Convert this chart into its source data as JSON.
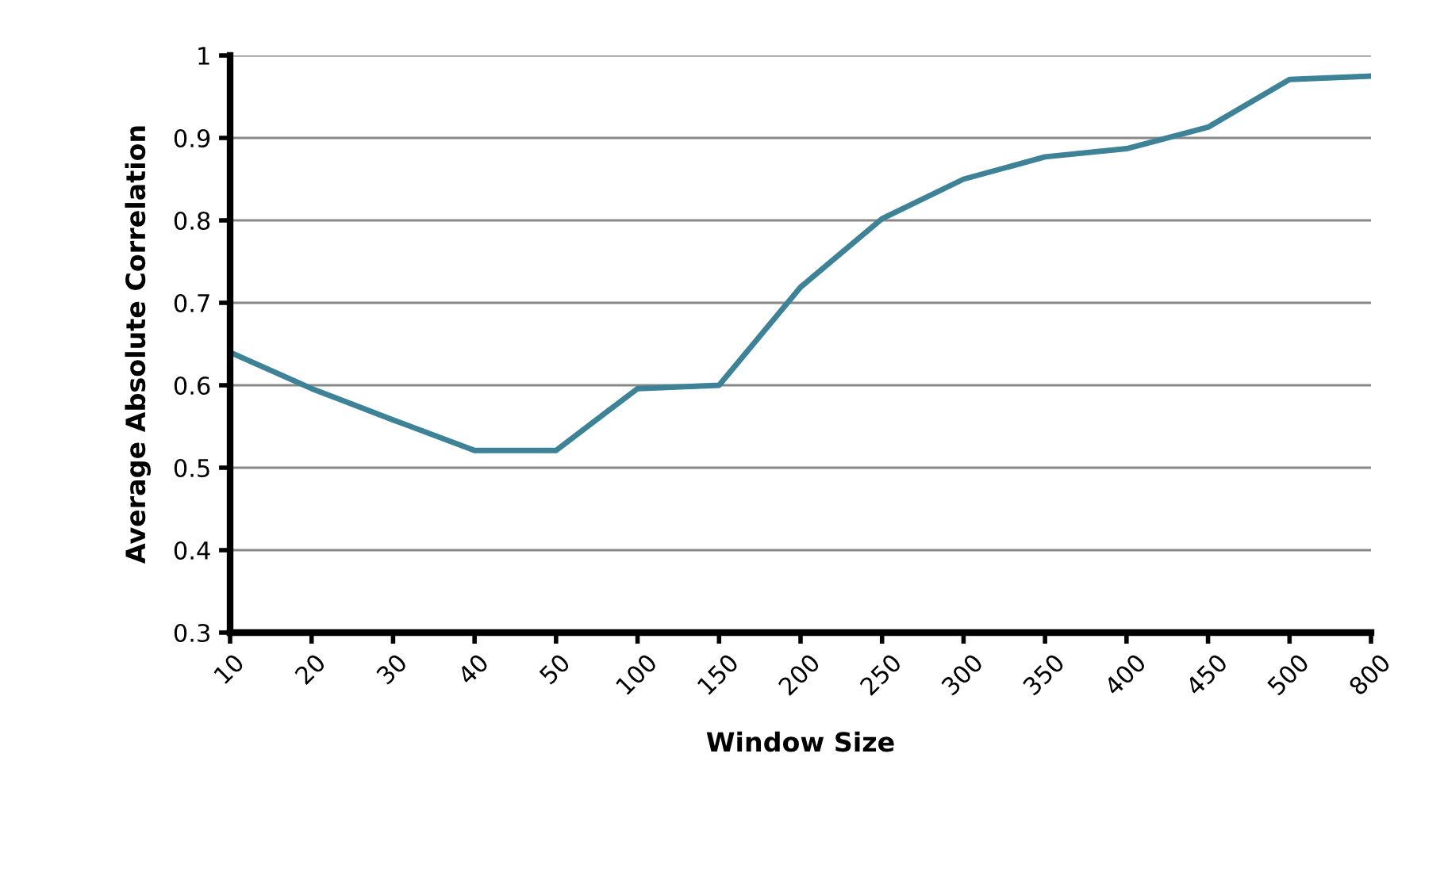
{
  "chart_data": {
    "type": "line",
    "xlabel": "Window Size",
    "ylabel": "Average Absolute Correlation",
    "categories": [
      "10",
      "20",
      "30",
      "40",
      "50",
      "100",
      "150",
      "200",
      "250",
      "300",
      "350",
      "400",
      "450",
      "500",
      "800"
    ],
    "series": [
      {
        "color": "#3d8296",
        "values": [
          0.64,
          0.596,
          0.558,
          0.521,
          0.521,
          0.596,
          0.6,
          0.719,
          0.802,
          0.85,
          0.877,
          0.887,
          0.913,
          0.971,
          0.975
        ]
      }
    ],
    "ylim": [
      0.3,
      1
    ],
    "yticks": [
      0.3,
      0.4,
      0.5,
      0.6,
      0.7,
      0.8,
      0.9,
      1
    ],
    "grid": "y",
    "legend": false,
    "marker": "none",
    "line_style": "solid"
  }
}
